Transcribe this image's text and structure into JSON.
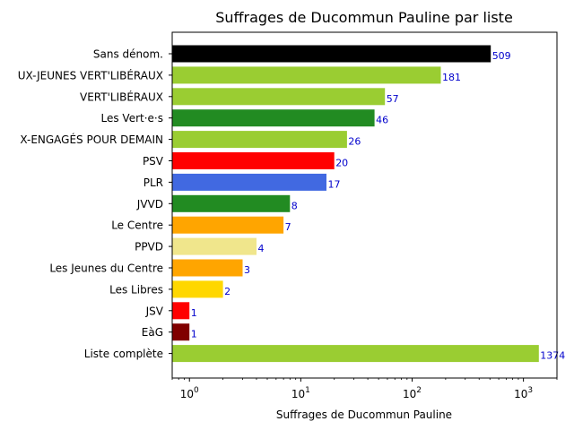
{
  "chart_data": {
    "type": "bar",
    "orientation": "horizontal",
    "title": "Suffrages de Ducommun Pauline par liste",
    "xlabel": "Suffrages de Ducommun Pauline",
    "ylabel": "",
    "xscale": "log",
    "xlim": [
      0.7,
      2000
    ],
    "x_ticks": [
      {
        "value": 1,
        "base": "10",
        "exp": "0"
      },
      {
        "value": 10,
        "base": "10",
        "exp": "1"
      },
      {
        "value": 100,
        "base": "10",
        "exp": "2"
      },
      {
        "value": 1000,
        "base": "10",
        "exp": "3"
      }
    ],
    "grid": false,
    "bars": [
      {
        "category": "Sans dénom.",
        "value": 509,
        "label": "509",
        "color": "#000000"
      },
      {
        "category": "UX-JEUNES VERT'LIBÉRAUX",
        "value": 181,
        "label": "181",
        "color": "#9acd32"
      },
      {
        "category": "VERT'LIBÉRAUX",
        "value": 57,
        "label": "57",
        "color": "#9acd32"
      },
      {
        "category": "Les Vert·e·s",
        "value": 46,
        "label": "46",
        "color": "#228b22"
      },
      {
        "category": "X-ENGAGÉS POUR DEMAIN",
        "value": 26,
        "label": "26",
        "color": "#9acd32"
      },
      {
        "category": "PSV",
        "value": 20,
        "label": "20",
        "color": "#ff0000"
      },
      {
        "category": "PLR",
        "value": 17,
        "label": "17",
        "color": "#4169e1"
      },
      {
        "category": "JVVD",
        "value": 8,
        "label": "8",
        "color": "#228b22"
      },
      {
        "category": "Le Centre",
        "value": 7,
        "label": "7",
        "color": "#ffa500"
      },
      {
        "category": "PPVD",
        "value": 4,
        "label": "4",
        "color": "#f0e68c"
      },
      {
        "category": "Les Jeunes du Centre",
        "value": 3,
        "label": "3",
        "color": "#ffa500"
      },
      {
        "category": "Les Libres",
        "value": 2,
        "label": "2",
        "color": "#ffd700"
      },
      {
        "category": "JSV",
        "value": 1,
        "label": "1",
        "color": "#ff0000"
      },
      {
        "category": "EàG",
        "value": 1,
        "label": "1",
        "color": "#800000"
      },
      {
        "category": "Liste complète",
        "value": 1374,
        "label": "1374",
        "color": "#9acd32"
      }
    ]
  }
}
